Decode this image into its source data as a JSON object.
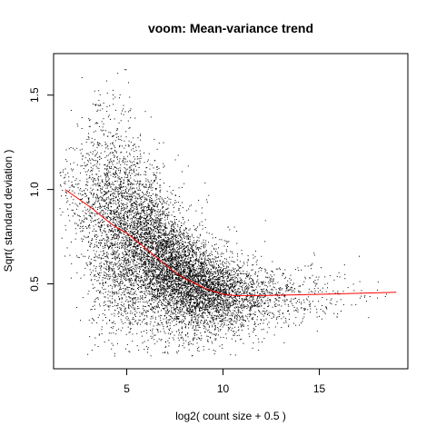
{
  "chart_data": {
    "type": "scatter",
    "title": "voom: Mean-variance trend",
    "xlabel": "log2( count size + 0.5 )",
    "ylabel": "Sqrt( standard deviation )",
    "xlim": [
      1.2,
      19.6
    ],
    "ylim": [
      0.05,
      1.72
    ],
    "x_ticks": [
      5,
      10,
      15
    ],
    "y_ticks": [
      0.5,
      1.0,
      1.5
    ],
    "grid": false,
    "point_color": "#000000",
    "trend_color": "#ff0000",
    "trend_line": {
      "x": [
        1.8,
        2.5,
        3.2,
        3.8,
        4.3,
        5.0,
        5.6,
        6.2,
        6.8,
        7.4,
        8.0,
        8.6,
        9.2,
        10.0,
        10.6,
        12.0,
        14.0,
        16.0,
        19.0
      ],
      "y": [
        1.0,
        0.95,
        0.9,
        0.85,
        0.81,
        0.77,
        0.72,
        0.67,
        0.62,
        0.57,
        0.53,
        0.5,
        0.47,
        0.445,
        0.438,
        0.438,
        0.442,
        0.447,
        0.455
      ]
    },
    "point_cloud": {
      "n_points": 9000,
      "density_by_x": [
        [
          1.5,
          0.02
        ],
        [
          2.5,
          0.12
        ],
        [
          3.5,
          0.45
        ],
        [
          4.5,
          0.75
        ],
        [
          5.5,
          0.9
        ],
        [
          6.5,
          1.0
        ],
        [
          7.5,
          1.0
        ],
        [
          8.5,
          0.9
        ],
        [
          9.5,
          0.65
        ],
        [
          10.5,
          0.4
        ],
        [
          11.5,
          0.22
        ],
        [
          12.5,
          0.13
        ],
        [
          13.5,
          0.08
        ],
        [
          14.5,
          0.05
        ],
        [
          15.5,
          0.03
        ],
        [
          16.5,
          0.015
        ],
        [
          17.5,
          0.008
        ],
        [
          18.5,
          0.004
        ]
      ],
      "spread_by_x": [
        [
          1.5,
          0.12
        ],
        [
          3.5,
          0.3
        ],
        [
          4.5,
          0.28
        ],
        [
          6.0,
          0.2
        ],
        [
          8.0,
          0.13
        ],
        [
          10.0,
          0.1
        ],
        [
          13.0,
          0.08
        ],
        [
          19.0,
          0.06
        ]
      ],
      "seed": 20240
    }
  }
}
